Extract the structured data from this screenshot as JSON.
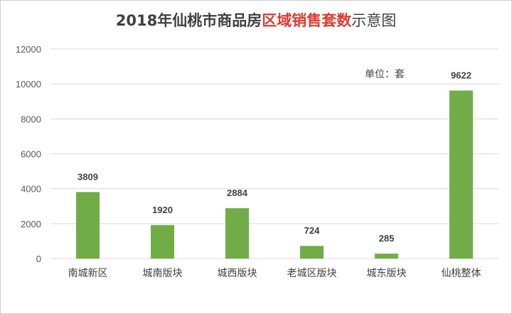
{
  "title": {
    "prefix": "2018年仙桃市商品房",
    "highlight": "区域销售套数",
    "suffix": "示意图"
  },
  "unit_label": "单位：套",
  "colors": {
    "bar": "#70ad47",
    "title_highlight": "#e03a2e",
    "text": "#404040",
    "grid": "#d9d9d9"
  },
  "chart_data": {
    "type": "bar",
    "categories": [
      "南城新区",
      "城南版块",
      "城西版块",
      "老城区版块",
      "城东版块",
      "仙桃整体"
    ],
    "values": [
      3809,
      1920,
      2884,
      724,
      285,
      9622
    ],
    "value_labels": [
      "3809",
      "1920",
      "2884",
      "724",
      "285",
      "9622"
    ],
    "ylim": [
      0,
      12000
    ],
    "yticks": [
      0,
      2000,
      4000,
      6000,
      8000,
      10000,
      12000
    ],
    "ytick_labels": [
      "0",
      "2000",
      "4000",
      "6000",
      "8000",
      "10000",
      "12000"
    ],
    "grid": true,
    "legend": "none",
    "xlabel": "",
    "ylabel": ""
  }
}
